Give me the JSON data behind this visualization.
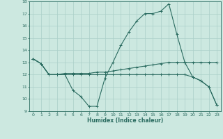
{
  "xlabel": "Humidex (Indice chaleur)",
  "bg_color": "#cce8e0",
  "line_color": "#2a6b60",
  "grid_color": "#aacfc8",
  "xlim": [
    -0.5,
    23.5
  ],
  "ylim": [
    9,
    18
  ],
  "xticks": [
    0,
    1,
    2,
    3,
    4,
    5,
    6,
    7,
    8,
    9,
    10,
    11,
    12,
    13,
    14,
    15,
    16,
    17,
    18,
    19,
    20,
    21,
    22,
    23
  ],
  "yticks": [
    9,
    10,
    11,
    12,
    13,
    14,
    15,
    16,
    17,
    18
  ],
  "line1_x": [
    0,
    1,
    2,
    3,
    4,
    5,
    6,
    7,
    8,
    9,
    10,
    11,
    12,
    13,
    14,
    15,
    16,
    17,
    18,
    19,
    20,
    21,
    22,
    23
  ],
  "line1_y": [
    13.3,
    12.9,
    12.0,
    12.0,
    12.0,
    10.7,
    10.2,
    9.4,
    9.4,
    11.7,
    13.0,
    14.4,
    15.5,
    16.4,
    17.0,
    17.0,
    17.2,
    17.8,
    15.3,
    13.0,
    11.8,
    11.5,
    11.0,
    9.5
  ],
  "line2_x": [
    0,
    1,
    2,
    3,
    4,
    5,
    6,
    7,
    8,
    9,
    10,
    11,
    12,
    13,
    14,
    15,
    16,
    17,
    18,
    19,
    20,
    21,
    22,
    23
  ],
  "line2_y": [
    13.3,
    12.9,
    12.0,
    12.0,
    12.1,
    12.1,
    12.1,
    12.1,
    12.2,
    12.2,
    12.3,
    12.4,
    12.5,
    12.6,
    12.7,
    12.8,
    12.9,
    13.0,
    13.0,
    13.0,
    13.0,
    13.0,
    13.0,
    13.0
  ],
  "line3_x": [
    0,
    1,
    2,
    3,
    4,
    5,
    6,
    7,
    8,
    9,
    10,
    11,
    12,
    13,
    14,
    15,
    16,
    17,
    18,
    19,
    20,
    21,
    22,
    23
  ],
  "line3_y": [
    13.3,
    12.9,
    12.0,
    12.0,
    12.0,
    12.0,
    12.0,
    12.0,
    12.0,
    12.0,
    12.0,
    12.0,
    12.0,
    12.0,
    12.0,
    12.0,
    12.0,
    12.0,
    12.0,
    12.0,
    11.8,
    11.5,
    11.0,
    9.5
  ],
  "xlabel_fontsize": 5.5,
  "tick_fontsize": 4.5
}
